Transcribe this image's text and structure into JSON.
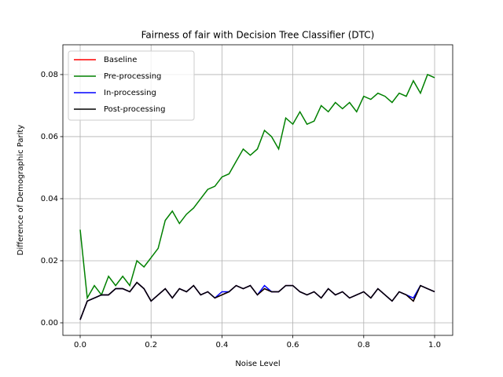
{
  "chart_data": {
    "type": "line",
    "title": "Fairness of fair with Decision Tree Classifier (DTC)",
    "x_label": "Noise Level",
    "y_label": "Difference of Demographic Parity",
    "x": [
      0,
      0.02,
      0.04,
      0.06,
      0.08,
      0.1,
      0.12,
      0.14,
      0.16,
      0.18,
      0.2,
      0.22,
      0.24,
      0.26,
      0.28,
      0.3,
      0.32,
      0.34,
      0.36,
      0.38,
      0.4,
      0.42,
      0.44,
      0.46,
      0.48,
      0.5,
      0.52,
      0.54,
      0.56,
      0.58,
      0.6,
      0.62,
      0.64,
      0.66,
      0.68,
      0.7,
      0.72,
      0.74,
      0.76,
      0.78,
      0.8,
      0.82,
      0.84,
      0.86,
      0.88,
      0.9,
      0.92,
      0.94,
      0.96,
      0.98,
      1.0
    ],
    "series": [
      {
        "name": "Baseline",
        "color": "#ff0000",
        "values": [
          0.001,
          0.007,
          0.008,
          0.009,
          0.009,
          0.011,
          0.011,
          0.01,
          0.013,
          0.011,
          0.007,
          0.009,
          0.011,
          0.008,
          0.011,
          0.01,
          0.012,
          0.009,
          0.01,
          0.008,
          0.009,
          0.01,
          0.012,
          0.011,
          0.012,
          0.009,
          0.011,
          0.01,
          0.01,
          0.012,
          0.012,
          0.01,
          0.009,
          0.01,
          0.008,
          0.011,
          0.009,
          0.01,
          0.008,
          0.009,
          0.01,
          0.008,
          0.011,
          0.009,
          0.007,
          0.01,
          0.009,
          0.007,
          0.012,
          0.011,
          0.01
        ]
      },
      {
        "name": "Pre-processing",
        "color": "#008000",
        "values": [
          0.03,
          0.008,
          0.012,
          0.009,
          0.015,
          0.012,
          0.015,
          0.012,
          0.02,
          0.018,
          0.021,
          0.024,
          0.033,
          0.036,
          0.032,
          0.035,
          0.037,
          0.04,
          0.043,
          0.044,
          0.047,
          0.048,
          0.052,
          0.056,
          0.054,
          0.056,
          0.062,
          0.06,
          0.056,
          0.066,
          0.064,
          0.068,
          0.064,
          0.065,
          0.07,
          0.068,
          0.071,
          0.069,
          0.071,
          0.068,
          0.073,
          0.072,
          0.074,
          0.073,
          0.071,
          0.074,
          0.073,
          0.078,
          0.074,
          0.08,
          0.079
        ]
      },
      {
        "name": "In-processing",
        "color": "#0000ff",
        "values": [
          0.001,
          0.007,
          0.008,
          0.009,
          0.009,
          0.011,
          0.011,
          0.01,
          0.013,
          0.011,
          0.007,
          0.009,
          0.011,
          0.008,
          0.011,
          0.01,
          0.012,
          0.009,
          0.01,
          0.008,
          0.01,
          0.01,
          0.012,
          0.011,
          0.012,
          0.009,
          0.012,
          0.01,
          0.01,
          0.012,
          0.012,
          0.01,
          0.009,
          0.01,
          0.008,
          0.011,
          0.009,
          0.01,
          0.008,
          0.009,
          0.01,
          0.008,
          0.011,
          0.009,
          0.007,
          0.01,
          0.009,
          0.008,
          0.012,
          0.011,
          0.01
        ]
      },
      {
        "name": "Post-processing",
        "color": "#000000",
        "values": [
          0.001,
          0.007,
          0.008,
          0.009,
          0.009,
          0.011,
          0.011,
          0.01,
          0.013,
          0.011,
          0.007,
          0.009,
          0.011,
          0.008,
          0.011,
          0.01,
          0.012,
          0.009,
          0.01,
          0.008,
          0.009,
          0.01,
          0.012,
          0.011,
          0.012,
          0.009,
          0.011,
          0.01,
          0.01,
          0.012,
          0.012,
          0.01,
          0.009,
          0.01,
          0.008,
          0.011,
          0.009,
          0.01,
          0.008,
          0.009,
          0.01,
          0.008,
          0.011,
          0.009,
          0.007,
          0.01,
          0.009,
          0.007,
          0.012,
          0.011,
          0.01
        ]
      }
    ],
    "xlim": [
      -0.0488,
      1.051
    ],
    "ylim": [
      -0.00405,
      0.0896
    ],
    "xticks": [
      {
        "value": 0,
        "label": "0.0"
      },
      0.2,
      0.4,
      0.6,
      0.8,
      {
        "value": 1,
        "label": "1.0"
      }
    ],
    "yticks": [
      {
        "value": 0,
        "label": "0.00"
      },
      {
        "value": 0.02,
        "label": "0.02"
      },
      {
        "value": 0.04,
        "label": "0.04"
      },
      {
        "value": 0.06,
        "label": "0.06"
      },
      {
        "value": 0.08,
        "label": "0.08"
      }
    ],
    "grid": true,
    "legend": "upper-left"
  }
}
